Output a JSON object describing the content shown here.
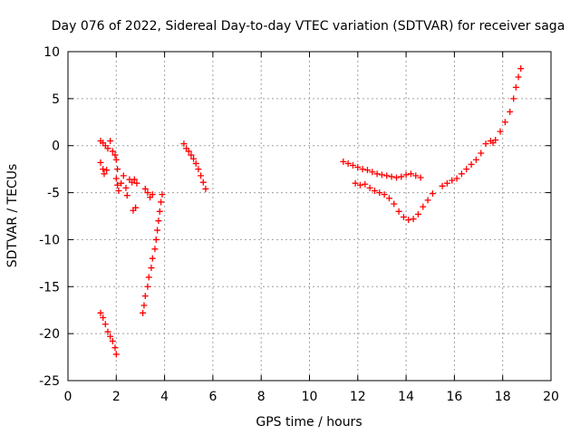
{
  "chart_data": {
    "type": "scatter",
    "title": "Day 076 of 2022, Sidereal Day-to-day VTEC variation (SDTVAR) for receiver saga",
    "xlabel": "GPS time / hours",
    "ylabel": "SDTVAR / TECUs",
    "xlim": [
      0,
      20
    ],
    "ylim": [
      -25,
      10
    ],
    "xticks": [
      0,
      2,
      4,
      6,
      8,
      10,
      12,
      14,
      16,
      18,
      20
    ],
    "yticks": [
      -25,
      -20,
      -15,
      -10,
      -5,
      0,
      5,
      10
    ],
    "grid": true,
    "marker": "+",
    "color": "#ff0000",
    "series": [
      {
        "name": "SDTVAR",
        "points": [
          [
            1.35,
            0.5
          ],
          [
            1.45,
            0.3
          ],
          [
            1.55,
            0.0
          ],
          [
            1.65,
            -0.3
          ],
          [
            1.75,
            0.5
          ],
          [
            1.85,
            -0.6
          ],
          [
            1.95,
            -1.0
          ],
          [
            2.0,
            -1.5
          ],
          [
            2.05,
            -2.5
          ],
          [
            1.35,
            -1.8
          ],
          [
            1.45,
            -2.5
          ],
          [
            1.5,
            -3.0
          ],
          [
            1.6,
            -2.6
          ],
          [
            2.0,
            -3.5
          ],
          [
            2.05,
            -4.2
          ],
          [
            2.1,
            -4.8
          ],
          [
            2.2,
            -4.0
          ],
          [
            2.3,
            -3.2
          ],
          [
            2.4,
            -4.5
          ],
          [
            2.45,
            -5.3
          ],
          [
            2.55,
            -3.6
          ],
          [
            2.65,
            -3.9
          ],
          [
            2.75,
            -3.6
          ],
          [
            2.85,
            -4.0
          ],
          [
            2.7,
            -6.9
          ],
          [
            2.8,
            -6.6
          ],
          [
            1.35,
            -17.8
          ],
          [
            1.45,
            -18.3
          ],
          [
            1.55,
            -19.0
          ],
          [
            1.65,
            -19.8
          ],
          [
            1.75,
            -20.3
          ],
          [
            1.85,
            -20.8
          ],
          [
            1.95,
            -21.5
          ],
          [
            2.0,
            -22.2
          ],
          [
            3.1,
            -17.8
          ],
          [
            3.15,
            -17.0
          ],
          [
            3.2,
            -16.0
          ],
          [
            3.3,
            -15.0
          ],
          [
            3.35,
            -14.0
          ],
          [
            3.45,
            -13.0
          ],
          [
            3.5,
            -12.0
          ],
          [
            3.6,
            -11.0
          ],
          [
            3.65,
            -10.0
          ],
          [
            3.7,
            -9.0
          ],
          [
            3.75,
            -8.0
          ],
          [
            3.8,
            -7.0
          ],
          [
            3.85,
            -6.0
          ],
          [
            3.9,
            -5.2
          ],
          [
            3.2,
            -4.6
          ],
          [
            3.3,
            -5.0
          ],
          [
            3.4,
            -5.5
          ],
          [
            3.5,
            -5.2
          ],
          [
            4.8,
            0.2
          ],
          [
            4.9,
            -0.3
          ],
          [
            5.0,
            -0.6
          ],
          [
            5.1,
            -1.0
          ],
          [
            5.2,
            -1.4
          ],
          [
            5.3,
            -1.9
          ],
          [
            5.4,
            -2.5
          ],
          [
            5.5,
            -3.2
          ],
          [
            5.6,
            -3.9
          ],
          [
            5.7,
            -4.6
          ],
          [
            11.4,
            -1.7
          ],
          [
            11.6,
            -1.9
          ],
          [
            11.8,
            -2.1
          ],
          [
            12.0,
            -2.3
          ],
          [
            12.2,
            -2.5
          ],
          [
            12.4,
            -2.6
          ],
          [
            12.6,
            -2.8
          ],
          [
            12.8,
            -3.0
          ],
          [
            13.0,
            -3.1
          ],
          [
            13.2,
            -3.2
          ],
          [
            13.4,
            -3.3
          ],
          [
            13.6,
            -3.4
          ],
          [
            13.8,
            -3.3
          ],
          [
            14.0,
            -3.1
          ],
          [
            14.2,
            -3.0
          ],
          [
            14.4,
            -3.2
          ],
          [
            14.6,
            -3.4
          ],
          [
            11.9,
            -4.0
          ],
          [
            12.1,
            -4.2
          ],
          [
            12.3,
            -4.1
          ],
          [
            12.5,
            -4.5
          ],
          [
            12.7,
            -4.8
          ],
          [
            12.9,
            -5.0
          ],
          [
            13.1,
            -5.2
          ],
          [
            13.3,
            -5.6
          ],
          [
            13.5,
            -6.2
          ],
          [
            13.7,
            -7.0
          ],
          [
            13.9,
            -7.6
          ],
          [
            14.1,
            -7.9
          ],
          [
            14.3,
            -7.8
          ],
          [
            14.5,
            -7.3
          ],
          [
            14.7,
            -6.5
          ],
          [
            14.9,
            -5.8
          ],
          [
            15.1,
            -5.1
          ],
          [
            15.5,
            -4.3
          ],
          [
            15.7,
            -4.0
          ],
          [
            15.9,
            -3.7
          ],
          [
            16.1,
            -3.5
          ],
          [
            16.3,
            -3.0
          ],
          [
            16.5,
            -2.5
          ],
          [
            16.7,
            -2.0
          ],
          [
            16.9,
            -1.5
          ],
          [
            17.1,
            -0.8
          ],
          [
            17.3,
            0.2
          ],
          [
            17.5,
            0.5
          ],
          [
            17.6,
            0.3
          ],
          [
            17.7,
            0.6
          ],
          [
            17.9,
            1.5
          ],
          [
            18.1,
            2.5
          ],
          [
            18.3,
            3.6
          ],
          [
            18.45,
            5.0
          ],
          [
            18.55,
            6.2
          ],
          [
            18.65,
            7.3
          ],
          [
            18.75,
            8.2
          ]
        ]
      }
    ]
  }
}
